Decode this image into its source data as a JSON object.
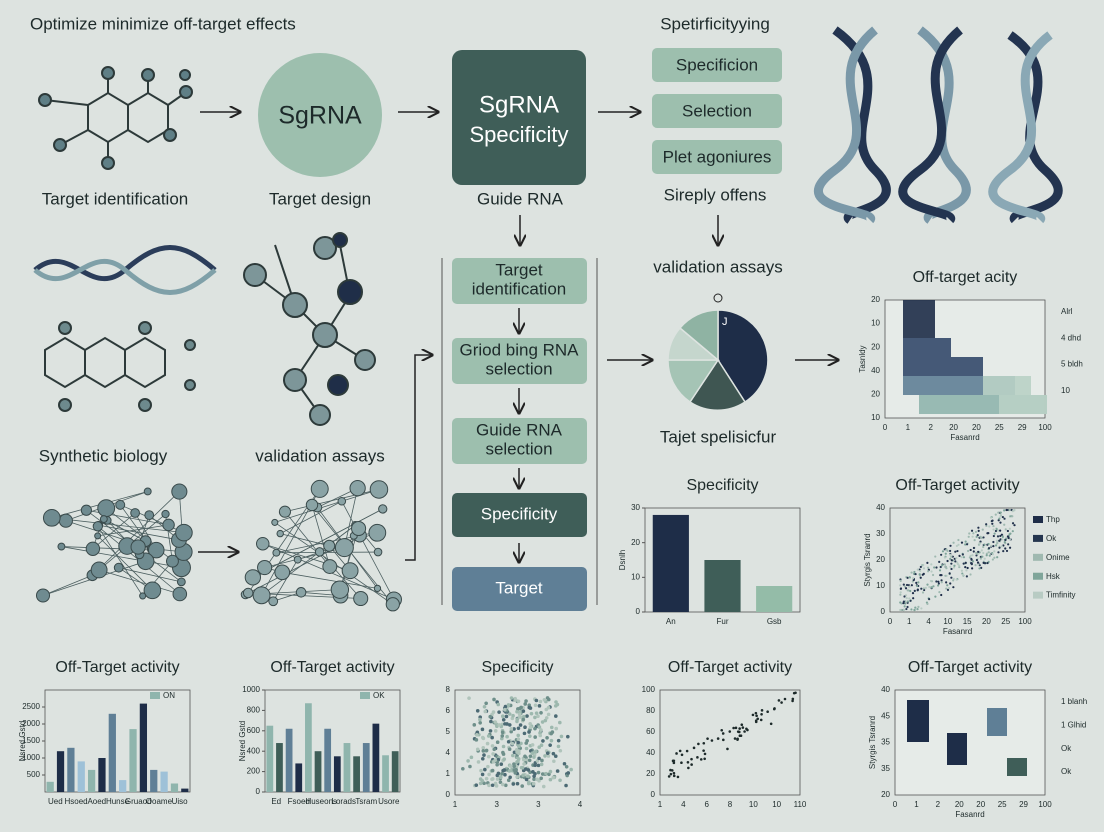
{
  "title": "Optimize minimize off-target effects",
  "top_flow": {
    "left_label": "Target identification",
    "circle_text": "SgRNA",
    "circle_label": "Target design",
    "box_text": [
      "SgRNA",
      "Specificity"
    ],
    "box_label": "Guide RNA"
  },
  "options": {
    "title": "Spetirficityying",
    "items": [
      "Specificion",
      "Selection",
      "Plet agoniures"
    ],
    "footer": "Sireply offens"
  },
  "left_labels": [
    "Synthetic biology",
    "validation assays"
  ],
  "steps": [
    [
      "Target",
      "identification"
    ],
    [
      "Griod bing RNA",
      "selection"
    ],
    [
      "Guide RNA",
      "selection"
    ],
    [
      "Specificity"
    ],
    [
      "Target"
    ]
  ],
  "pie": {
    "title": "validation assays",
    "mark": "J",
    "caption": "Tajet spelisicfur"
  },
  "charts": [
    {
      "type": "heatmap",
      "title": "Off-target acity",
      "y_labels": [
        "10",
        "20",
        "40",
        "20",
        "10",
        "20"
      ],
      "x_labels": [
        "0",
        "1",
        "2",
        "20",
        "20",
        "25",
        "29",
        "100"
      ],
      "ylabel": "Tasnldy",
      "xlabel": "Fasanrd",
      "legend": [
        "Alrl",
        "4 dhd",
        "5 bldh",
        "10"
      ]
    },
    {
      "type": "bar",
      "title": "Specificity",
      "ylim": [
        0,
        30
      ],
      "yticks": [
        0,
        10,
        20,
        30
      ],
      "categories": [
        "An",
        "Fur",
        "Gsb"
      ],
      "values": [
        28,
        15,
        7.5
      ],
      "colors": [
        "#1e2d48",
        "#3f5e58",
        "#94bca8"
      ],
      "ylabel": "Dsnlh"
    },
    {
      "type": "scatter",
      "title": "Off-Target activity",
      "y_labels": [
        "0",
        "10",
        "20",
        "30",
        "40"
      ],
      "x_labels": [
        "0",
        "1",
        "4",
        "10",
        "15",
        "20",
        "25",
        "100"
      ],
      "ylabel": "Styrgis Tsranrd",
      "xlabel": "Fasanrd",
      "legend": [
        "Thp",
        "Ok",
        "Onime",
        "Hsk",
        "Timfinity"
      ],
      "colors": [
        "#1e2d48",
        "#25364f",
        "#9fb9b0",
        "#7fa59a",
        "#b8cbc3"
      ]
    },
    {
      "type": "bar",
      "title": "Off-Target activity",
      "ylim": [
        0,
        3000
      ],
      "yticks": [
        500,
        1000,
        1500,
        2000,
        2500
      ],
      "categories": [
        "Ued",
        "Hsoed",
        "Aoed",
        "Hunse",
        "Gruaod",
        "Ooame",
        "Uiso"
      ],
      "values": [
        300,
        1200,
        1300,
        900,
        650,
        1000,
        2300,
        350,
        1850,
        2600,
        650,
        600,
        250,
        100
      ],
      "colors": [
        "#8fb5ad",
        "#1e2d48",
        "#5f7f96",
        "#9ec1d8"
      ],
      "ylabel": "Nsred Gstd",
      "legend": [
        "ON"
      ]
    },
    {
      "type": "bar",
      "title": "Off-Target activity",
      "ylim": [
        0,
        1000
      ],
      "yticks": [
        0,
        200,
        400,
        600,
        800,
        1000
      ],
      "categories": [
        "Ed",
        "Fsoed",
        "Huseons",
        "Lorads",
        "Tsram",
        "Usore"
      ],
      "values": [
        650,
        480,
        620,
        280,
        870,
        400,
        620,
        350,
        480,
        350,
        480,
        670,
        360,
        400
      ],
      "colors": [
        "#8fb5ad",
        "#3f5e58",
        "#5f7f96",
        "#1e2d48"
      ],
      "ylabel": "Nsred Gstd",
      "legend": [
        "OK"
      ]
    },
    {
      "type": "scatter",
      "title": "Specificity",
      "y_labels": [
        "0",
        "1",
        "4",
        "5",
        "6",
        "8"
      ],
      "x_labels": [
        "1",
        "3",
        "3",
        "4"
      ]
    },
    {
      "type": "line-scatter",
      "title": "Off-Target activity",
      "y_labels": [
        "0",
        "20",
        "40",
        "60",
        "80",
        "100"
      ],
      "x_labels": [
        "1",
        "4",
        "6",
        "8",
        "10",
        "10",
        "110"
      ]
    },
    {
      "type": "heatmap2",
      "title": "Off-Target activity",
      "y_labels": [
        "20",
        "35",
        "35",
        "45",
        "40"
      ],
      "x_labels": [
        "0",
        "1",
        "2",
        "20",
        "20",
        "25",
        "29",
        "100"
      ],
      "ylabel": "Styrgis Tsranrd",
      "xlabel": "Fasanrd",
      "legend": [
        "1 blanh",
        "1 Glhid",
        "Ok",
        "Ok"
      ]
    }
  ]
}
